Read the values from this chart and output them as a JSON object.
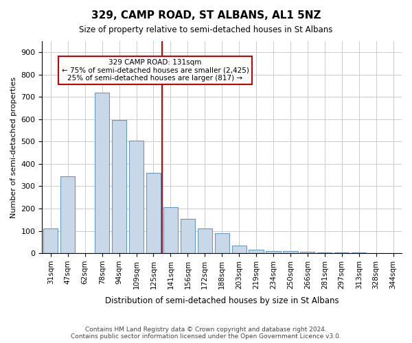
{
  "title": "329, CAMP ROAD, ST ALBANS, AL1 5NZ",
  "subtitle": "Size of property relative to semi-detached houses in St Albans",
  "xlabel": "Distribution of semi-detached houses by size in St Albans",
  "ylabel": "Number of semi-detached properties",
  "footnote": "Contains HM Land Registry data © Crown copyright and database right 2024.\nContains public sector information licensed under the Open Government Licence v3.0.",
  "categories": [
    "31sqm",
    "47sqm",
    "62sqm",
    "78sqm",
    "94sqm",
    "109sqm",
    "125sqm",
    "141sqm",
    "156sqm",
    "172sqm",
    "188sqm",
    "203sqm",
    "219sqm",
    "234sqm",
    "250sqm",
    "266sqm",
    "281sqm",
    "297sqm",
    "313sqm",
    "328sqm",
    "344sqm"
  ],
  "values": [
    110,
    345,
    0,
    720,
    595,
    505,
    360,
    205,
    155,
    110,
    90,
    35,
    15,
    10,
    8,
    5,
    3,
    2,
    2,
    1,
    1
  ],
  "bar_color": "#c8d8e8",
  "bar_edgecolor": "#6699bb",
  "vline_x_index": 7,
  "vline_color": "#cc0000",
  "annotation_text": "329 CAMP ROAD: 131sqm\n← 75% of semi-detached houses are smaller (2,425)\n25% of semi-detached houses are larger (817) →",
  "annotation_box_color": "#ffffff",
  "annotation_box_edgecolor": "#cc0000",
  "ylim": [
    0,
    950
  ],
  "yticks": [
    0,
    100,
    200,
    300,
    400,
    500,
    600,
    700,
    800,
    900
  ],
  "background_color": "#ffffff",
  "grid_color": "#cccccc"
}
